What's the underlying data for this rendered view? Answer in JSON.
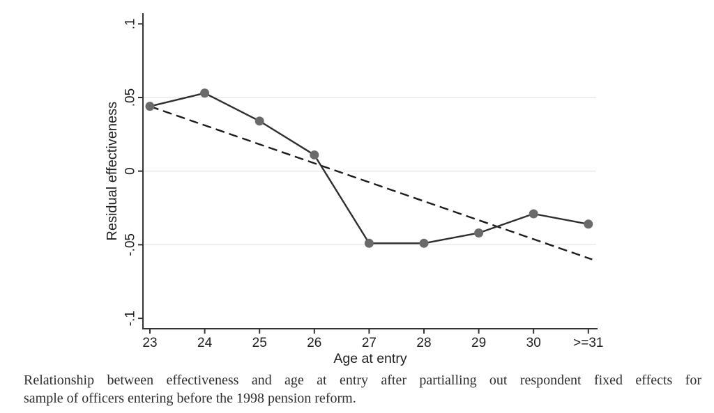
{
  "figure": {
    "caption_lines": [
      "Relationship between effectiveness and age at entry after partialling out respondent fixed effects for",
      "sample of officers entering before the 1998 pension reform."
    ]
  },
  "chart_data": {
    "type": "line",
    "title": "",
    "xlabel": "Age at entry",
    "ylabel": "Residual effectiveness",
    "categories": [
      "23",
      "24",
      "25",
      "26",
      "27",
      "28",
      "29",
      "30",
      ">=31"
    ],
    "x": [
      23,
      24,
      25,
      26,
      27,
      28,
      29,
      30,
      31
    ],
    "series": [
      {
        "name": "residual-effectiveness-by-entry-age",
        "style": "solid-with-markers",
        "x": [
          23,
          24,
          25,
          26,
          27,
          28,
          29,
          30,
          31
        ],
        "values": [
          0.044,
          0.053,
          0.034,
          0.011,
          -0.049,
          -0.049,
          -0.042,
          -0.029,
          -0.036
        ]
      },
      {
        "name": "linear-fit",
        "style": "dashed",
        "x": [
          23,
          31.07
        ],
        "values": [
          0.044,
          -0.06
        ]
      }
    ],
    "ylim": [
      -0.107,
      0.102
    ],
    "xlim": [
      22.87,
      31.17
    ],
    "yticks": [
      0.1,
      0.05,
      0,
      -0.05,
      -0.1
    ],
    "ytick_labels": [
      ".1",
      ".05",
      "0",
      "-.05",
      "-.1"
    ],
    "grid_at": [
      0.05,
      0,
      -0.05
    ],
    "grid": true,
    "legend": "none",
    "colors": {
      "marker": "#6a6a6a",
      "line": "#2e2e2e",
      "trend": "#1c1c1c",
      "grid": "#e9e9e9",
      "axis": "#333333",
      "text": "#1f1f1f"
    }
  }
}
